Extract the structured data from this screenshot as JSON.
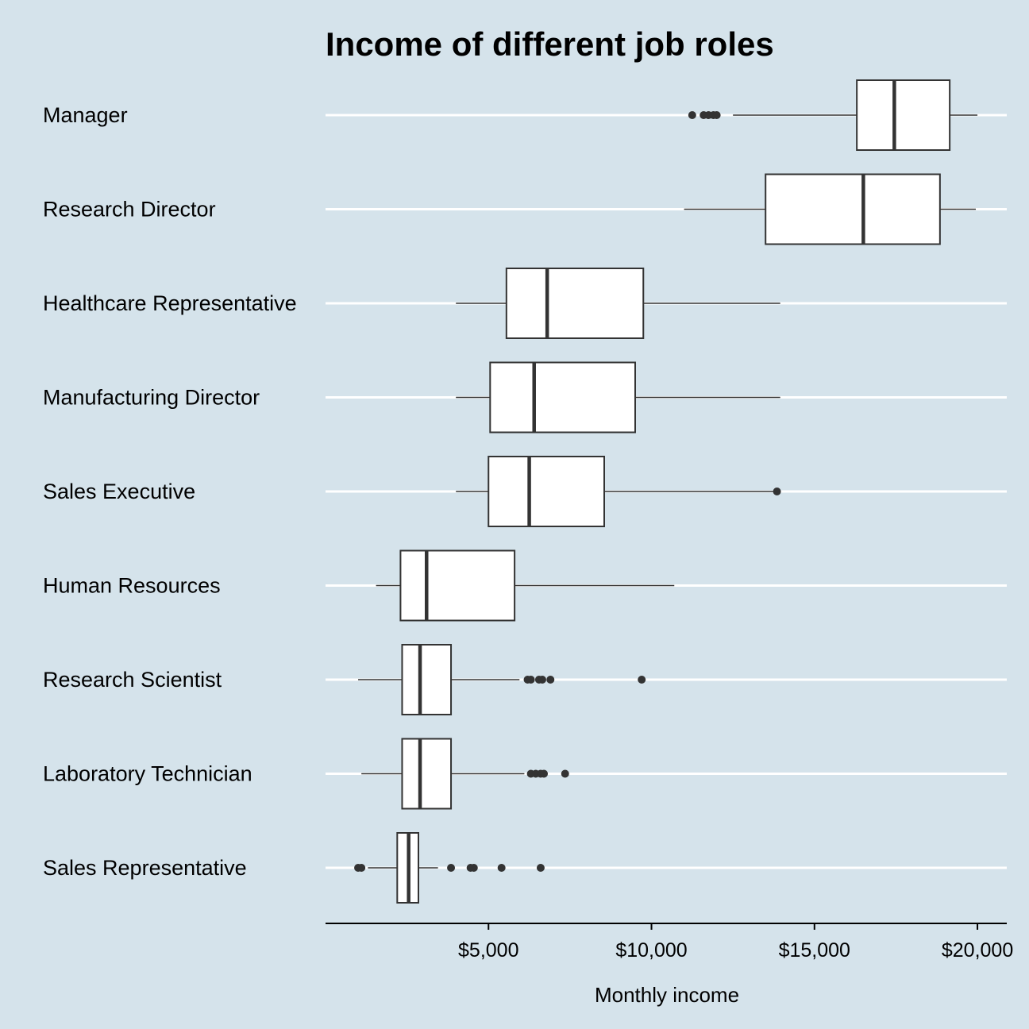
{
  "chart_data": {
    "type": "boxplot",
    "orientation": "horizontal",
    "title": "Income of different job roles",
    "xlabel": "Monthly income",
    "ylabel": "",
    "xlim": [
      0,
      20900
    ],
    "xticks": [
      5000,
      10000,
      15000,
      20000
    ],
    "xtick_labels": [
      "$5,000",
      "$10,000",
      "$15,000",
      "$20,000"
    ],
    "grid": "horizontal lines at categories",
    "legend": "none",
    "colors": {
      "background": "#d5e3eb",
      "box_fill": "#ffffff",
      "box_line": "#333333",
      "grid": "#ffffff"
    },
    "categories": [
      "Manager",
      "Research Director",
      "Healthcare Representative",
      "Manufacturing Director",
      "Sales Executive",
      "Human Resources",
      "Research Scientist",
      "Laboratory Technician",
      "Sales Representative"
    ],
    "boxes": [
      {
        "category": "Manager",
        "whisker_low": 12500,
        "q1": 16300,
        "median": 17450,
        "q3": 19150,
        "whisker_high": 20000,
        "outliers": [
          11250,
          11600,
          11750,
          11900,
          12000
        ]
      },
      {
        "category": "Research Director",
        "whisker_low": 11000,
        "q1": 13500,
        "median": 16500,
        "q3": 18850,
        "whisker_high": 19950,
        "outliers": []
      },
      {
        "category": "Healthcare Representative",
        "whisker_low": 4000,
        "q1": 5550,
        "median": 6800,
        "q3": 9750,
        "whisker_high": 13950,
        "outliers": []
      },
      {
        "category": "Manufacturing Director",
        "whisker_low": 4000,
        "q1": 5050,
        "median": 6400,
        "q3": 9500,
        "whisker_high": 13950,
        "outliers": []
      },
      {
        "category": "Sales Executive",
        "whisker_low": 4000,
        "q1": 5000,
        "median": 6250,
        "q3": 8550,
        "whisker_high": 13850,
        "outliers": [
          13850
        ]
      },
      {
        "category": "Human Resources",
        "whisker_low": 1550,
        "q1": 2300,
        "median": 3100,
        "q3": 5800,
        "whisker_high": 10700,
        "outliers": []
      },
      {
        "category": "Research Scientist",
        "whisker_low": 1000,
        "q1": 2350,
        "median": 2900,
        "q3": 3850,
        "whisker_high": 5950,
        "outliers": [
          6200,
          6300,
          6550,
          6650,
          6900,
          9700
        ]
      },
      {
        "category": "Laboratory Technician",
        "whisker_low": 1100,
        "q1": 2350,
        "median": 2900,
        "q3": 3850,
        "whisker_high": 6100,
        "outliers": [
          6300,
          6450,
          6600,
          6700,
          7350
        ]
      },
      {
        "category": "Sales Representative",
        "whisker_low": 1300,
        "q1": 2200,
        "median": 2550,
        "q3": 2850,
        "whisker_high": 3450,
        "outliers": [
          1000,
          1100,
          3850,
          4450,
          4550,
          5400,
          6600
        ]
      }
    ]
  }
}
